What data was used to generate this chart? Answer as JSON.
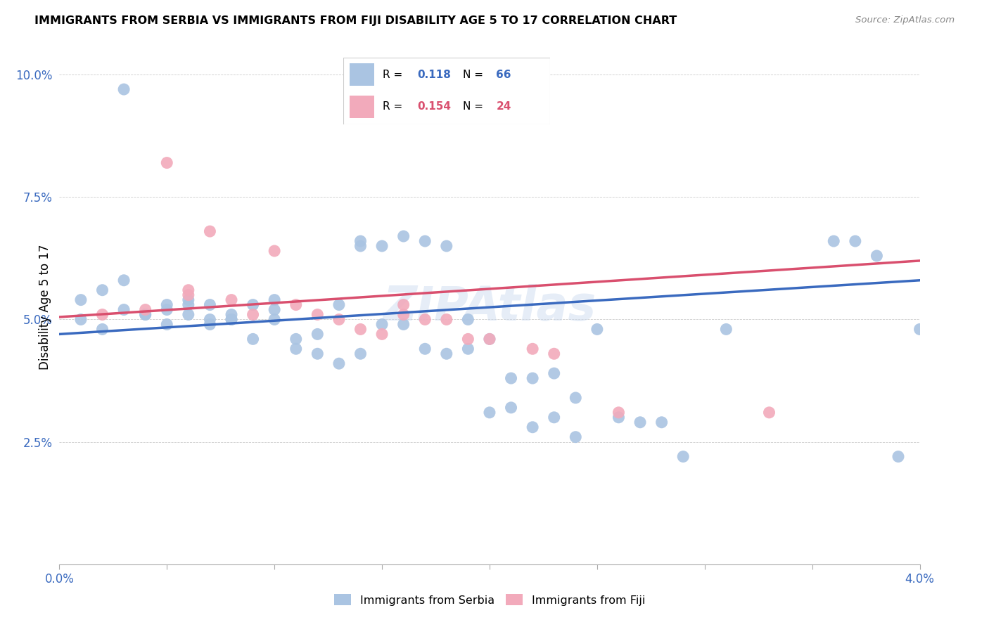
{
  "title": "IMMIGRANTS FROM SERBIA VS IMMIGRANTS FROM FIJI DISABILITY AGE 5 TO 17 CORRELATION CHART",
  "source": "Source: ZipAtlas.com",
  "ylabel": "Disability Age 5 to 17",
  "xlim": [
    0.0,
    0.04
  ],
  "ylim": [
    0.0,
    0.105
  ],
  "serbia_color": "#aac4e2",
  "fiji_color": "#f2aabb",
  "serbia_line_color": "#3a6abf",
  "fiji_line_color": "#d94f6e",
  "legend_r_serbia": "0.118",
  "legend_n_serbia": "66",
  "legend_r_fiji": "0.154",
  "legend_n_fiji": "24",
  "watermark": "ZIPAtlas",
  "serbia_trend_x": [
    0.0,
    0.04
  ],
  "serbia_trend_y": [
    0.047,
    0.058
  ],
  "fiji_trend_x": [
    0.0,
    0.04
  ],
  "fiji_trend_y": [
    0.0505,
    0.062
  ],
  "serbia_scatter_x": [
    0.001,
    0.001,
    0.002,
    0.002,
    0.003,
    0.003,
    0.003,
    0.004,
    0.004,
    0.005,
    0.005,
    0.005,
    0.006,
    0.006,
    0.006,
    0.007,
    0.007,
    0.007,
    0.008,
    0.008,
    0.008,
    0.009,
    0.009,
    0.01,
    0.01,
    0.01,
    0.011,
    0.011,
    0.012,
    0.012,
    0.013,
    0.013,
    0.014,
    0.014,
    0.014,
    0.015,
    0.015,
    0.016,
    0.016,
    0.017,
    0.017,
    0.018,
    0.018,
    0.019,
    0.019,
    0.02,
    0.02,
    0.021,
    0.021,
    0.022,
    0.022,
    0.023,
    0.023,
    0.024,
    0.024,
    0.025,
    0.026,
    0.027,
    0.028,
    0.029,
    0.031,
    0.036,
    0.037,
    0.038,
    0.039,
    0.04
  ],
  "serbia_scatter_y": [
    0.054,
    0.05,
    0.056,
    0.048,
    0.097,
    0.052,
    0.058,
    0.051,
    0.051,
    0.053,
    0.052,
    0.049,
    0.054,
    0.053,
    0.051,
    0.05,
    0.053,
    0.049,
    0.051,
    0.05,
    0.05,
    0.053,
    0.046,
    0.054,
    0.052,
    0.05,
    0.046,
    0.044,
    0.047,
    0.043,
    0.053,
    0.041,
    0.065,
    0.066,
    0.043,
    0.065,
    0.049,
    0.067,
    0.049,
    0.066,
    0.044,
    0.065,
    0.043,
    0.05,
    0.044,
    0.046,
    0.031,
    0.038,
    0.032,
    0.038,
    0.028,
    0.039,
    0.03,
    0.034,
    0.026,
    0.048,
    0.03,
    0.029,
    0.029,
    0.022,
    0.048,
    0.066,
    0.066,
    0.063,
    0.022,
    0.048
  ],
  "fiji_scatter_x": [
    0.002,
    0.004,
    0.005,
    0.006,
    0.006,
    0.007,
    0.008,
    0.009,
    0.01,
    0.011,
    0.012,
    0.013,
    0.014,
    0.015,
    0.016,
    0.016,
    0.017,
    0.018,
    0.019,
    0.02,
    0.022,
    0.023,
    0.026,
    0.033
  ],
  "fiji_scatter_y": [
    0.051,
    0.052,
    0.082,
    0.056,
    0.055,
    0.068,
    0.054,
    0.051,
    0.064,
    0.053,
    0.051,
    0.05,
    0.048,
    0.047,
    0.053,
    0.051,
    0.05,
    0.05,
    0.046,
    0.046,
    0.044,
    0.043,
    0.031,
    0.031
  ]
}
